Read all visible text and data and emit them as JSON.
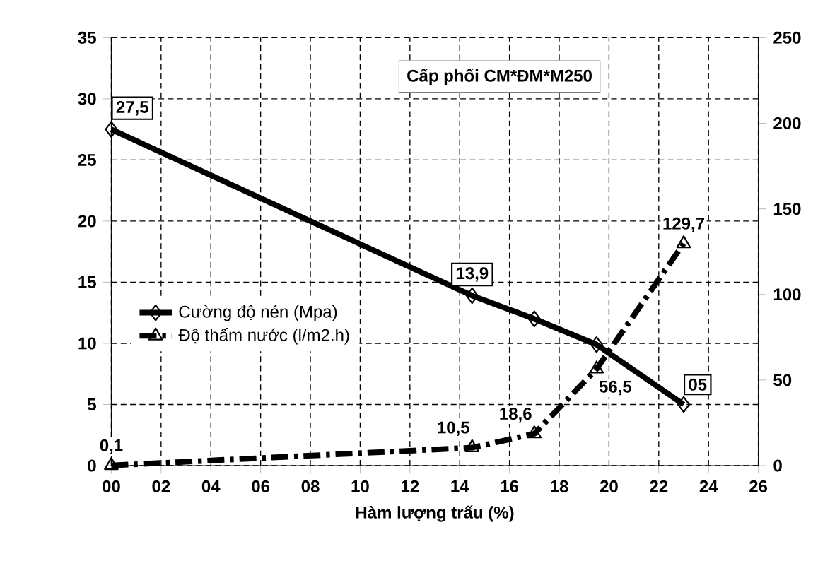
{
  "chart_data": {
    "type": "line",
    "title": "Cấp phối CM*ĐM*M250",
    "xlabel": "Hàm lượng trấu (%)",
    "xlim": [
      0,
      26
    ],
    "xticks": [
      {
        "value": 0,
        "label": "00"
      },
      {
        "value": 2,
        "label": "02"
      },
      {
        "value": 4,
        "label": "04"
      },
      {
        "value": 6,
        "label": "06"
      },
      {
        "value": 8,
        "label": "08"
      },
      {
        "value": 10,
        "label": "10"
      },
      {
        "value": 12,
        "label": "12"
      },
      {
        "value": 14,
        "label": "14"
      },
      {
        "value": 16,
        "label": "16"
      },
      {
        "value": 18,
        "label": "18"
      },
      {
        "value": 20,
        "label": "20"
      },
      {
        "value": 22,
        "label": "22"
      },
      {
        "value": 24,
        "label": "24"
      },
      {
        "value": 26,
        "label": "26"
      }
    ],
    "ylim": [
      0,
      35
    ],
    "yticks": [
      0,
      5,
      10,
      15,
      20,
      25,
      30,
      35
    ],
    "y2lim": [
      0,
      250
    ],
    "y2ticks": [
      0,
      50,
      100,
      150,
      200,
      250
    ],
    "grid": true,
    "legend": "left",
    "series": [
      {
        "name": "Cường độ nén (Mpa)",
        "color": "#000000",
        "x": [
          0,
          14.5,
          17,
          19.5,
          23
        ],
        "values": [
          27.5,
          13.9,
          12,
          9.9,
          5
        ],
        "value_labels": [
          "27,5",
          "13,9",
          null,
          null,
          "05"
        ],
        "marker": "diamond",
        "line_style": "solid"
      },
      {
        "name": "Độ thấm nước (l/m2.h)",
        "color": "#000000",
        "axis": "y2",
        "x": [
          0,
          14.5,
          17,
          19.5,
          23
        ],
        "values": [
          0.1,
          10.5,
          18.6,
          56.5,
          129.7
        ],
        "value_labels": [
          "0,1",
          "10,5",
          "18,6",
          "56,5",
          "129,7"
        ],
        "marker": "triangle",
        "line_style": "dashed"
      }
    ]
  }
}
